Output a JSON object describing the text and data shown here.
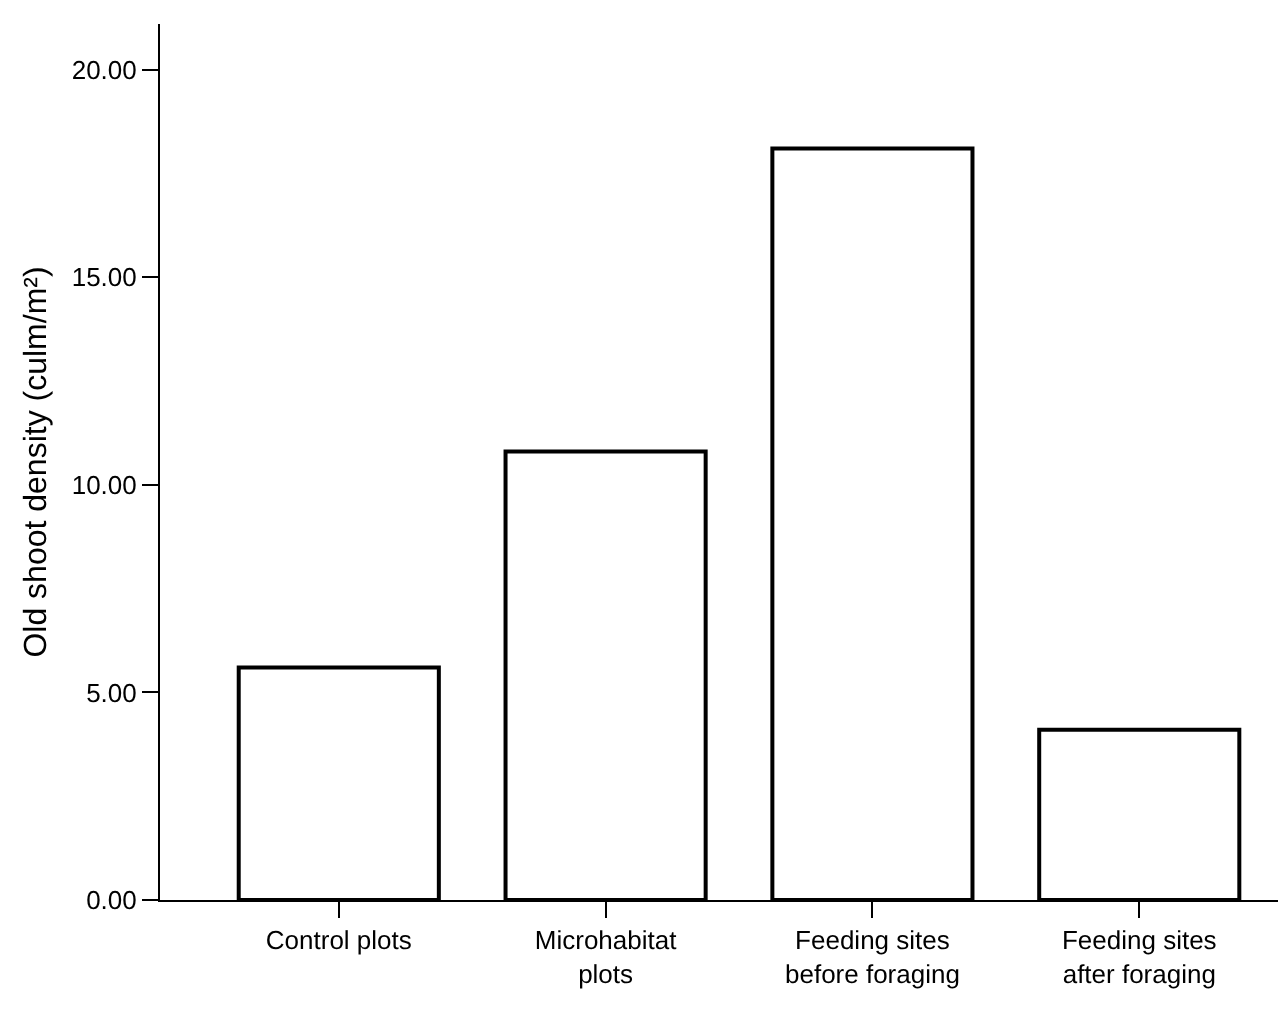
{
  "chart_data": {
    "type": "bar",
    "ylabel": "Old shoot density (culm/m²)",
    "categories": [
      "Control plots",
      "Microhabitat plots",
      "Feeding sites before foraging",
      "Feeding sites after foraging"
    ],
    "values": [
      5.6,
      10.8,
      18.1,
      4.1
    ],
    "color": "#ffffff",
    "ylim": [
      0,
      21.1
    ],
    "yticks": [
      {
        "value": 0,
        "label": "0.00"
      },
      {
        "value": 5,
        "label": "5.00"
      },
      {
        "value": 10,
        "label": "10.00"
      },
      {
        "value": 15,
        "label": "15.00"
      },
      {
        "value": 20,
        "label": "20.00"
      }
    ],
    "data_labels": false
  }
}
